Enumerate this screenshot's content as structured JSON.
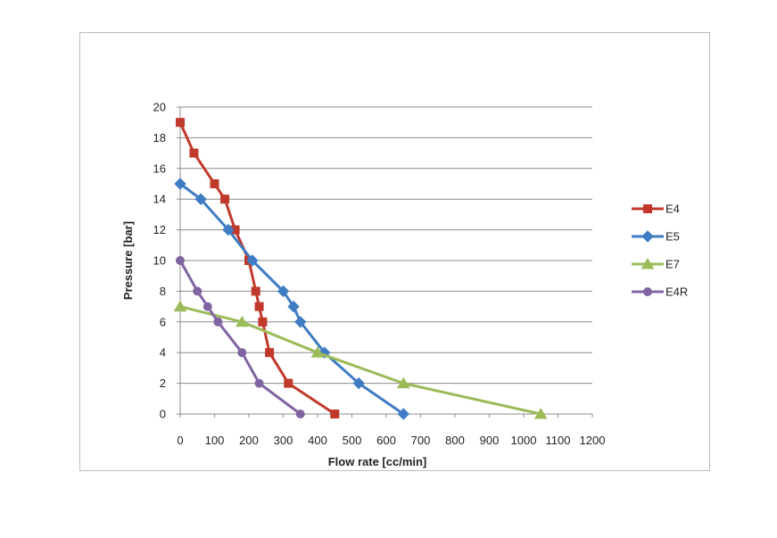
{
  "chart_data": {
    "type": "line",
    "title": "",
    "xlabel": "Flow rate [cc/min]",
    "ylabel": "Pressure [bar]",
    "xlim": [
      0,
      1200
    ],
    "ylim": [
      0,
      20
    ],
    "xticks": [
      0,
      100,
      200,
      300,
      400,
      500,
      600,
      700,
      800,
      900,
      1000,
      1100,
      1200
    ],
    "yticks": [
      0,
      2,
      4,
      6,
      8,
      10,
      12,
      14,
      16,
      18,
      20
    ],
    "grid": "horizontal",
    "legend": "right",
    "series": [
      {
        "name": "E4",
        "color": "#c0392b",
        "marker": "square",
        "points": [
          [
            0,
            19
          ],
          [
            40,
            17
          ],
          [
            100,
            15
          ],
          [
            130,
            14
          ],
          [
            160,
            12
          ],
          [
            200,
            10
          ],
          [
            220,
            8
          ],
          [
            230,
            7
          ],
          [
            240,
            6
          ],
          [
            260,
            4
          ],
          [
            315,
            2
          ],
          [
            450,
            0
          ]
        ]
      },
      {
        "name": "E5",
        "color": "#3f7cc4",
        "marker": "diamond",
        "points": [
          [
            0,
            15
          ],
          [
            60,
            14
          ],
          [
            140,
            12
          ],
          [
            210,
            10
          ],
          [
            300,
            8
          ],
          [
            330,
            7
          ],
          [
            350,
            6
          ],
          [
            420,
            4
          ],
          [
            520,
            2
          ],
          [
            650,
            0
          ]
        ]
      },
      {
        "name": "E7",
        "color": "#9bbb59",
        "marker": "triangle",
        "points": [
          [
            0,
            7
          ],
          [
            180,
            6
          ],
          [
            400,
            4
          ],
          [
            650,
            2
          ],
          [
            1050,
            0
          ]
        ]
      },
      {
        "name": "E4R",
        "color": "#8064a2",
        "marker": "circle",
        "points": [
          [
            0,
            10
          ],
          [
            50,
            8
          ],
          [
            80,
            7
          ],
          [
            110,
            6
          ],
          [
            180,
            4
          ],
          [
            230,
            2
          ],
          [
            350,
            0
          ]
        ]
      }
    ]
  }
}
